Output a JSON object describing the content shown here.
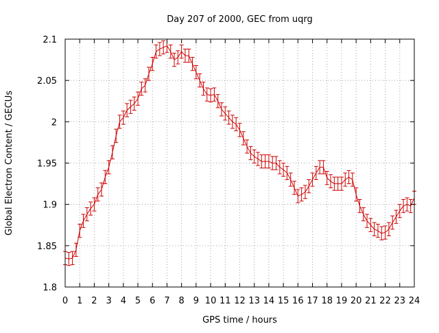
{
  "chart_data": {
    "type": "line",
    "title": "Day 207 of 2000, GEC from uqrg",
    "xlabel": "GPS time / hours",
    "ylabel": "Global Electron Content / GECUs",
    "xlim": [
      0,
      24
    ],
    "ylim": [
      1.8,
      2.1
    ],
    "xticks": [
      0,
      1,
      2,
      3,
      4,
      5,
      6,
      7,
      8,
      9,
      10,
      11,
      12,
      13,
      14,
      15,
      16,
      17,
      18,
      19,
      20,
      21,
      22,
      23,
      24
    ],
    "yticks": [
      1.8,
      1.85,
      1.9,
      1.95,
      2.0,
      2.05,
      2.1
    ],
    "ytick_labels": [
      "1.8",
      "1.85",
      "1.9",
      "1.95",
      "2",
      "2.05",
      "2.1"
    ],
    "grid": true,
    "legend": "none",
    "series": [
      {
        "color": "#cc0000",
        "error": 0.008,
        "x": [
          0.0,
          0.25,
          0.5,
          0.75,
          1.0,
          1.25,
          1.5,
          1.75,
          2.0,
          2.25,
          2.5,
          2.75,
          3.0,
          3.25,
          3.5,
          3.75,
          4.0,
          4.25,
          4.5,
          4.75,
          5.0,
          5.25,
          5.5,
          5.75,
          6.0,
          6.25,
          6.5,
          6.75,
          7.0,
          7.25,
          7.5,
          7.75,
          8.0,
          8.25,
          8.5,
          8.75,
          9.0,
          9.25,
          9.5,
          9.75,
          10.0,
          10.25,
          10.5,
          10.75,
          11.0,
          11.25,
          11.5,
          11.75,
          12.0,
          12.25,
          12.5,
          12.75,
          13.0,
          13.25,
          13.5,
          13.75,
          14.0,
          14.25,
          14.5,
          14.75,
          15.0,
          15.25,
          15.5,
          15.75,
          16.0,
          16.25,
          16.5,
          16.75,
          17.0,
          17.25,
          17.5,
          17.75,
          18.0,
          18.25,
          18.5,
          18.75,
          19.0,
          19.25,
          19.5,
          19.75,
          20.0,
          20.25,
          20.5,
          20.75,
          21.0,
          21.25,
          21.5,
          21.75,
          22.0,
          22.25,
          22.5,
          22.75,
          23.0,
          23.25,
          23.5,
          23.75,
          24.0
        ],
        "y": [
          1.835,
          1.834,
          1.835,
          1.845,
          1.868,
          1.88,
          1.888,
          1.895,
          1.9,
          1.912,
          1.918,
          1.933,
          1.945,
          1.963,
          1.983,
          2.0,
          2.005,
          2.014,
          2.018,
          2.022,
          2.028,
          2.04,
          2.044,
          2.058,
          2.07,
          2.085,
          2.088,
          2.09,
          2.092,
          2.085,
          2.075,
          2.078,
          2.085,
          2.08,
          2.08,
          2.07,
          2.06,
          2.05,
          2.04,
          2.033,
          2.032,
          2.033,
          2.025,
          2.015,
          2.01,
          2.005,
          2.0,
          1.997,
          1.99,
          1.98,
          1.97,
          1.962,
          1.958,
          1.955,
          1.952,
          1.952,
          1.952,
          1.95,
          1.95,
          1.945,
          1.942,
          1.938,
          1.93,
          1.92,
          1.91,
          1.912,
          1.915,
          1.922,
          1.93,
          1.938,
          1.945,
          1.945,
          1.932,
          1.928,
          1.925,
          1.925,
          1.925,
          1.93,
          1.933,
          1.93,
          1.912,
          1.898,
          1.888,
          1.88,
          1.875,
          1.87,
          1.868,
          1.865,
          1.866,
          1.87,
          1.878,
          1.885,
          1.892,
          1.898,
          1.9,
          1.898,
          1.908
        ]
      }
    ]
  }
}
